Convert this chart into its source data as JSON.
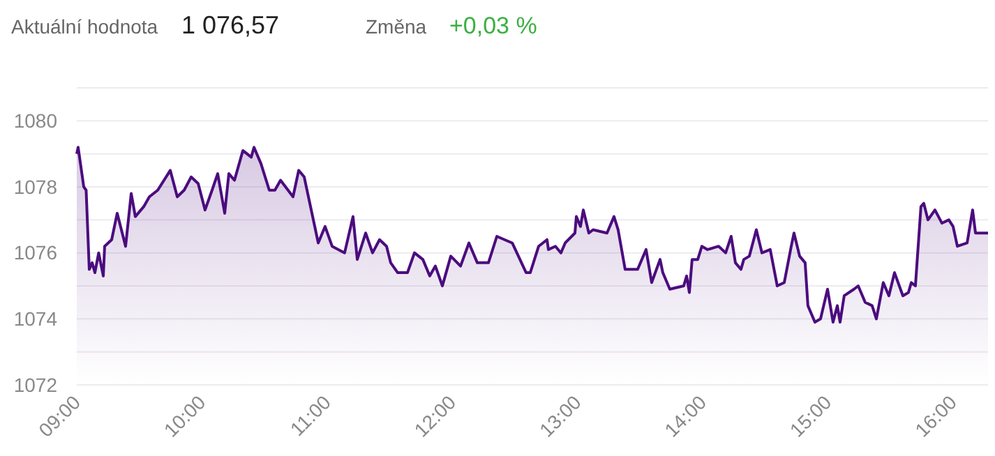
{
  "chart_data": {
    "type": "area",
    "annotations": [
      "Aktuální hodnota",
      "1 076,57",
      "Změna",
      "+0,03 %"
    ],
    "xlim": [
      9,
      16.28
    ],
    "xticks": [
      {
        "value": 9,
        "label": "09:00"
      },
      {
        "value": 10,
        "label": "10:00"
      },
      {
        "value": 11,
        "label": "11:00"
      },
      {
        "value": 12,
        "label": "12:00"
      },
      {
        "value": 13,
        "label": "13:00"
      },
      {
        "value": 14,
        "label": "14:00"
      },
      {
        "value": 15,
        "label": "15:00"
      },
      {
        "value": 16,
        "label": "16:00"
      }
    ],
    "ylim": [
      1072,
      1081
    ],
    "yticks": [
      1072,
      {
        "value": 1073,
        "label": null
      },
      1074,
      {
        "value": 1075,
        "label": null
      },
      1076,
      {
        "value": 1077,
        "label": null
      },
      1078,
      {
        "value": 1079,
        "label": null
      },
      1080,
      {
        "value": 1081,
        "label": null
      }
    ],
    "grid": "y",
    "series": [
      {
        "color": "#4b0c7e",
        "x": [
          9.0,
          9.011,
          9.056,
          9.075,
          9.1,
          9.123,
          9.145,
          9.175,
          9.212,
          9.223,
          9.279,
          9.323,
          9.39,
          9.435,
          9.468,
          9.535,
          9.58,
          9.647,
          9.747,
          9.803,
          9.858,
          9.914,
          9.97,
          10.025,
          10.081,
          10.126,
          10.182,
          10.215,
          10.26,
          10.327,
          10.394,
          10.416,
          10.472,
          10.538,
          10.583,
          10.628,
          10.728,
          10.773,
          10.817,
          10.907,
          10.929,
          10.984,
          11.04,
          11.14,
          11.207,
          11.241,
          11.308,
          11.363,
          11.419,
          11.475,
          11.508,
          11.564,
          11.642,
          11.698,
          11.765,
          11.82,
          11.865,
          11.921,
          11.988,
          12.066,
          12.133,
          12.2,
          12.289,
          12.356,
          12.479,
          12.59,
          12.623,
          12.69,
          12.757,
          12.768,
          12.824,
          12.868,
          12.902,
          12.98,
          12.991,
          13.024,
          13.047,
          13.091,
          13.125,
          13.236,
          13.292,
          13.325,
          13.381,
          13.481,
          13.548,
          13.593,
          13.66,
          13.682,
          13.738,
          13.849,
          13.872,
          13.894,
          13.916,
          13.961,
          13.994,
          14.039,
          14.128,
          14.184,
          14.228,
          14.262,
          14.306,
          14.329,
          14.373,
          14.429,
          14.474,
          14.54,
          14.596,
          14.652,
          14.708,
          14.73,
          14.775,
          14.819,
          14.841,
          14.897,
          14.942,
          14.998,
          15.042,
          15.076,
          15.098,
          15.131,
          15.209,
          15.243,
          15.299,
          15.354,
          15.388,
          15.443,
          15.488,
          15.533,
          15.6,
          15.644,
          15.667,
          15.7,
          15.744,
          15.767,
          15.8,
          15.856,
          15.912,
          15.967,
          16.001,
          16.035,
          16.113,
          16.157,
          16.18,
          16.28
        ],
        "values": [
          1079.0,
          1079.2,
          1078.0,
          1077.9,
          1075.5,
          1075.7,
          1075.4,
          1076.0,
          1075.3,
          1076.2,
          1076.4,
          1077.2,
          1076.2,
          1077.8,
          1077.1,
          1077.4,
          1077.7,
          1077.9,
          1078.5,
          1077.7,
          1077.9,
          1078.3,
          1078.1,
          1077.3,
          1077.9,
          1078.4,
          1077.2,
          1078.4,
          1078.2,
          1079.1,
          1078.9,
          1079.2,
          1078.7,
          1077.9,
          1077.9,
          1078.2,
          1077.7,
          1078.5,
          1078.3,
          1076.7,
          1076.3,
          1076.8,
          1076.2,
          1076.0,
          1077.1,
          1075.8,
          1076.6,
          1076.0,
          1076.4,
          1076.2,
          1075.7,
          1075.4,
          1075.4,
          1076.0,
          1075.8,
          1075.3,
          1075.6,
          1075.0,
          1075.9,
          1075.6,
          1076.3,
          1075.7,
          1075.7,
          1076.5,
          1076.3,
          1075.4,
          1075.4,
          1076.2,
          1076.4,
          1076.1,
          1076.2,
          1076.0,
          1076.3,
          1076.6,
          1077.1,
          1076.8,
          1077.3,
          1076.6,
          1076.7,
          1076.6,
          1077.1,
          1076.7,
          1075.5,
          1075.5,
          1076.1,
          1075.1,
          1075.8,
          1075.4,
          1074.9,
          1075.0,
          1075.3,
          1074.8,
          1075.8,
          1075.8,
          1076.2,
          1076.1,
          1076.2,
          1076.0,
          1076.5,
          1075.7,
          1075.5,
          1075.8,
          1075.9,
          1076.7,
          1076.0,
          1076.1,
          1075.0,
          1075.1,
          1076.2,
          1076.6,
          1075.9,
          1075.7,
          1074.4,
          1073.9,
          1074.0,
          1074.9,
          1073.9,
          1074.4,
          1073.9,
          1074.7,
          1074.9,
          1075.0,
          1074.5,
          1074.4,
          1074.0,
          1075.1,
          1074.7,
          1075.4,
          1074.7,
          1074.8,
          1075.1,
          1075.0,
          1077.4,
          1077.5,
          1077.0,
          1077.3,
          1076.9,
          1077.0,
          1076.8,
          1076.2,
          1076.3,
          1077.3,
          1076.6,
          1076.6
        ]
      }
    ]
  }
}
